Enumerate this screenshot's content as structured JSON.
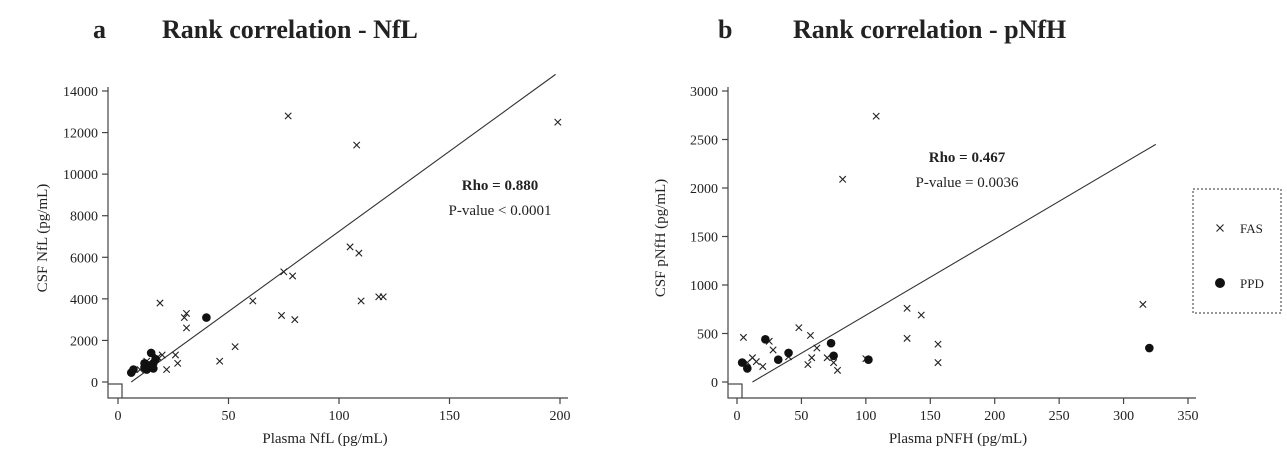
{
  "chart_data": [
    {
      "type": "scatter",
      "panel_letter": "a",
      "title": "Rank correlation  - NfL",
      "xlabel": "Plasma NfL (pg/mL)",
      "ylabel": "CSF NfL (pg/mL)",
      "xlim": [
        0,
        200
      ],
      "ylim": [
        0,
        14000
      ],
      "xticks": [
        0,
        50,
        100,
        150,
        200
      ],
      "yticks": [
        0,
        2000,
        4000,
        6000,
        8000,
        10000,
        12000,
        14000
      ],
      "rho_label": "Rho = 0.880",
      "p_label": "P-value < 0.0001",
      "fit_line": [
        [
          6,
          0
        ],
        [
          198,
          14800
        ]
      ],
      "series": [
        {
          "name": "FAS",
          "marker": "x",
          "points": [
            [
              19,
              3800
            ],
            [
              22,
              600
            ],
            [
              26,
              1300
            ],
            [
              27,
              900
            ],
            [
              30,
              3100
            ],
            [
              31,
              3300
            ],
            [
              31,
              2600
            ],
            [
              46,
              1000
            ],
            [
              53,
              1700
            ],
            [
              61,
              3900
            ],
            [
              74,
              3200
            ],
            [
              75,
              5300
            ],
            [
              77,
              12800
            ],
            [
              79,
              5100
            ],
            [
              80,
              3000
            ],
            [
              105,
              6500
            ],
            [
              108,
              11400
            ],
            [
              109,
              6200
            ],
            [
              110,
              3900
            ],
            [
              118,
              4100
            ],
            [
              120,
              4100
            ],
            [
              199,
              12500
            ],
            [
              13,
              1000
            ],
            [
              15,
              800
            ],
            [
              18,
              1200
            ],
            [
              20,
              1300
            ],
            [
              10,
              600
            ]
          ]
        },
        {
          "name": "PPD",
          "marker": "o",
          "points": [
            [
              6,
              450
            ],
            [
              7,
              600
            ],
            [
              12,
              700
            ],
            [
              12,
              900
            ],
            [
              13,
              600
            ],
            [
              14,
              800
            ],
            [
              15,
              1400
            ],
            [
              15,
              700
            ],
            [
              16,
              900
            ],
            [
              16,
              650
            ],
            [
              17,
              1100
            ],
            [
              40,
              3100
            ]
          ]
        }
      ]
    },
    {
      "type": "scatter",
      "panel_letter": "b",
      "title": "Rank correlation  - pNfH",
      "xlabel": "Plasma pNFH (pg/mL)",
      "ylabel": "CSF pNfH (pg/mL)",
      "xlim": [
        0,
        350
      ],
      "ylim": [
        0,
        3000
      ],
      "xticks": [
        0,
        50,
        100,
        150,
        200,
        250,
        300,
        350
      ],
      "yticks": [
        0,
        500,
        1000,
        1500,
        2000,
        2500,
        3000
      ],
      "rho_label": "Rho = 0.467",
      "p_label": "P-value = 0.0036",
      "fit_line": [
        [
          12,
          0
        ],
        [
          325,
          2450
        ]
      ],
      "series": [
        {
          "name": "FAS",
          "marker": "x",
          "points": [
            [
              5,
              460
            ],
            [
              8,
              200
            ],
            [
              12,
              250
            ],
            [
              15,
              210
            ],
            [
              20,
              160
            ],
            [
              25,
              420
            ],
            [
              28,
              330
            ],
            [
              40,
              260
            ],
            [
              48,
              560
            ],
            [
              55,
              180
            ],
            [
              57,
              480
            ],
            [
              58,
              250
            ],
            [
              62,
              350
            ],
            [
              70,
              250
            ],
            [
              75,
              200
            ],
            [
              78,
              120
            ],
            [
              82,
              2090
            ],
            [
              100,
              240
            ],
            [
              108,
              2740
            ],
            [
              132,
              760
            ],
            [
              132,
              450
            ],
            [
              143,
              690
            ],
            [
              156,
              390
            ],
            [
              156,
              200
            ],
            [
              315,
              800
            ]
          ]
        },
        {
          "name": "PPD",
          "marker": "o",
          "points": [
            [
              4,
              200
            ],
            [
              8,
              140
            ],
            [
              22,
              440
            ],
            [
              32,
              230
            ],
            [
              40,
              300
            ],
            [
              73,
              400
            ],
            [
              75,
              270
            ],
            [
              102,
              230
            ],
            [
              320,
              350
            ]
          ]
        }
      ]
    }
  ],
  "legend": {
    "items": [
      {
        "label": "FAS",
        "marker": "x"
      },
      {
        "label": "PPD",
        "marker": "o"
      }
    ]
  }
}
